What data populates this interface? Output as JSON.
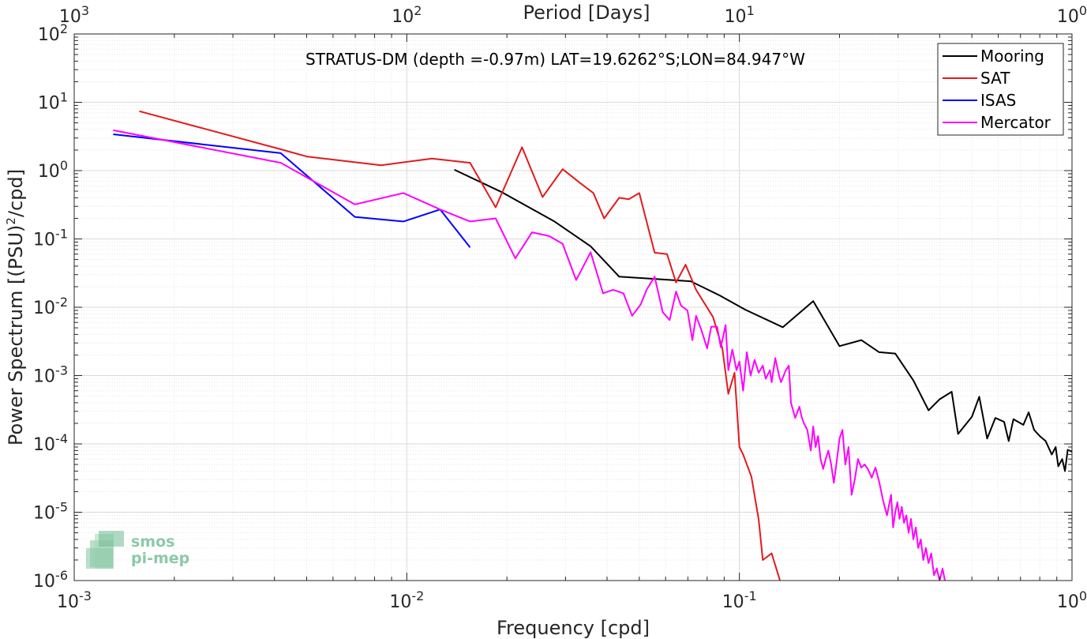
{
  "chart_data": {
    "type": "line",
    "title": "STRATUS-DM (depth =-0.97m) LAT=19.6262°S;LON=84.947°W",
    "xlabel": "Frequency [cpd]",
    "ylabel": "Power Spectrum [(PSU)",
    "ylabel_sup": "2",
    "ylabel_tail": "/cpd]",
    "top_xlabel": "Period [Days]",
    "xscale": "log",
    "yscale": "log",
    "xlim": [
      0.001,
      1
    ],
    "ylim": [
      1e-06,
      100
    ],
    "grid": true,
    "legend_position": "top-right",
    "x_ticks": [
      {
        "base": "10",
        "exp": "-3",
        "v": 0.001
      },
      {
        "base": "10",
        "exp": "-2",
        "v": 0.01
      },
      {
        "base": "10",
        "exp": "-1",
        "v": 0.1
      },
      {
        "base": "10",
        "exp": "0",
        "v": 1
      }
    ],
    "top_ticks": [
      {
        "base": "10",
        "exp": "3",
        "v": 0.001
      },
      {
        "base": "10",
        "exp": "2",
        "v": 0.01
      },
      {
        "base": "10",
        "exp": "1",
        "v": 0.1
      },
      {
        "base": "10",
        "exp": "0",
        "v": 1
      }
    ],
    "y_ticks": [
      {
        "base": "10",
        "exp": "2",
        "v": 100
      },
      {
        "base": "10",
        "exp": "1",
        "v": 10
      },
      {
        "base": "10",
        "exp": "0",
        "v": 1
      },
      {
        "base": "10",
        "exp": "-1",
        "v": 0.1
      },
      {
        "base": "10",
        "exp": "-2",
        "v": 0.01
      },
      {
        "base": "10",
        "exp": "-3",
        "v": 0.001
      },
      {
        "base": "10",
        "exp": "-4",
        "v": 0.0001
      },
      {
        "base": "10",
        "exp": "-5",
        "v": 1e-05
      },
      {
        "base": "10",
        "exp": "-6",
        "v": 1e-06
      }
    ],
    "series": [
      {
        "name": "Mooring",
        "color": "#000000",
        "points": [
          [
            0.0139,
            1.03
          ],
          [
            0.0192,
            0.49
          ],
          [
            0.0278,
            0.18
          ],
          [
            0.0357,
            0.078
          ],
          [
            0.0435,
            0.028
          ],
          [
            0.0556,
            0.026
          ],
          [
            0.0714,
            0.024
          ],
          [
            0.087,
            0.015
          ],
          [
            0.1042,
            0.0092
          ],
          [
            0.1351,
            0.0051
          ],
          [
            0.1667,
            0.0123
          ],
          [
            0.2,
            0.0027
          ],
          [
            0.2326,
            0.0033
          ],
          [
            0.2632,
            0.0022
          ],
          [
            0.2941,
            0.0021
          ],
          [
            0.3333,
            0.00085
          ],
          [
            0.3704,
            0.00031
          ],
          [
            0.4,
            0.00045
          ],
          [
            0.4348,
            0.00058
          ],
          [
            0.4545,
            0.00014
          ],
          [
            0.5,
            0.00025
          ],
          [
            0.5263,
            0.00049
          ],
          [
            0.5556,
            0.00012
          ],
          [
            0.5882,
            0.00024
          ],
          [
            0.625,
            0.00021
          ],
          [
            0.6452,
            0.00011
          ],
          [
            0.6667,
            0.00023
          ],
          [
            0.7143,
            0.00019
          ],
          [
            0.7407,
            0.00029
          ],
          [
            0.7692,
            0.00016
          ],
          [
            0.8,
            0.00013
          ],
          [
            0.8333,
            0.00011
          ],
          [
            0.8696,
            7e-05
          ],
          [
            0.8929,
            9e-05
          ],
          [
            0.9091,
            4.7e-05
          ],
          [
            0.9346,
            6e-05
          ],
          [
            0.9524,
            4e-05
          ],
          [
            0.9709,
            8.2e-05
          ],
          [
            1.0,
            7.7e-05
          ]
        ]
      },
      {
        "name": "SAT",
        "color": "#e31a1c",
        "points": [
          [
            0.00157,
            7.4
          ],
          [
            0.00418,
            2.05
          ],
          [
            0.00502,
            1.6
          ],
          [
            0.00837,
            1.2
          ],
          [
            0.0119,
            1.5
          ],
          [
            0.0155,
            1.3
          ],
          [
            0.0185,
            0.29
          ],
          [
            0.0222,
            2.2
          ],
          [
            0.0256,
            0.41
          ],
          [
            0.0294,
            1.05
          ],
          [
            0.0333,
            0.65
          ],
          [
            0.0364,
            0.47
          ],
          [
            0.0392,
            0.2
          ],
          [
            0.0435,
            0.4
          ],
          [
            0.0465,
            0.38
          ],
          [
            0.05,
            0.47
          ],
          [
            0.0556,
            0.063
          ],
          [
            0.0606,
            0.06
          ],
          [
            0.0645,
            0.023
          ],
          [
            0.0689,
            0.042
          ],
          [
            0.0741,
            0.018
          ],
          [
            0.0833,
            0.0072
          ],
          [
            0.0889,
            0.0025
          ],
          [
            0.0926,
            0.00054
          ],
          [
            0.0967,
            0.0011
          ],
          [
            0.1,
            9e-05
          ],
          [
            0.1026,
            7e-05
          ],
          [
            0.1087,
            3.3e-05
          ],
          [
            0.1143,
            7.8e-06
          ],
          [
            0.1176,
            2e-06
          ],
          [
            0.125,
            2.5e-06
          ],
          [
            0.1333,
            9e-07
          ]
        ]
      },
      {
        "name": "ISAS",
        "color": "#0000ff",
        "points": [
          [
            0.00131,
            3.4
          ],
          [
            0.00418,
            1.8
          ],
          [
            0.00698,
            0.21
          ],
          [
            0.00977,
            0.18
          ],
          [
            0.0126,
            0.27
          ],
          [
            0.0155,
            0.075
          ]
        ]
      },
      {
        "name": "Mercator",
        "color": "#ff00ff",
        "points": [
          [
            0.00131,
            3.9
          ],
          [
            0.00418,
            1.3
          ],
          [
            0.00698,
            0.32
          ],
          [
            0.00977,
            0.47
          ],
          [
            0.0126,
            0.27
          ],
          [
            0.0155,
            0.18
          ],
          [
            0.0185,
            0.2
          ],
          [
            0.0212,
            0.052
          ],
          [
            0.0238,
            0.125
          ],
          [
            0.0268,
            0.11
          ],
          [
            0.0294,
            0.085
          ],
          [
            0.0323,
            0.025
          ],
          [
            0.0357,
            0.064
          ],
          [
            0.0389,
            0.016
          ],
          [
            0.0417,
            0.018
          ],
          [
            0.0448,
            0.016
          ],
          [
            0.0476,
            0.0075
          ],
          [
            0.0505,
            0.011
          ],
          [
            0.0526,
            0.018
          ],
          [
            0.0556,
            0.028
          ],
          [
            0.0588,
            0.0085
          ],
          [
            0.0617,
            0.0065
          ],
          [
            0.0645,
            0.017
          ],
          [
            0.0667,
            0.0106
          ],
          [
            0.0698,
            0.009
          ],
          [
            0.0722,
            0.0033
          ],
          [
            0.0741,
            0.0075
          ],
          [
            0.0769,
            0.0046
          ],
          [
            0.08,
            0.0025
          ],
          [
            0.0823,
            0.0052
          ],
          [
            0.0857,
            0.0052
          ],
          [
            0.0879,
            0.0026
          ],
          [
            0.0909,
            0.0055
          ],
          [
            0.0926,
            0.0012
          ],
          [
            0.0952,
            0.0024
          ],
          [
            0.098,
            0.0012
          ],
          [
            0.1,
            0.0016
          ],
          [
            0.1026,
            0.0006
          ],
          [
            0.1053,
            0.0022
          ],
          [
            0.1081,
            0.001
          ],
          [
            0.1111,
            0.0017
          ],
          [
            0.1143,
            0.0011
          ],
          [
            0.1176,
            0.0014
          ],
          [
            0.12,
            0.0009
          ],
          [
            0.1235,
            0.0012
          ],
          [
            0.125,
            0.0008
          ],
          [
            0.1282,
            0.0018
          ],
          [
            0.1316,
            0.001
          ],
          [
            0.1333,
            0.0008
          ],
          [
            0.1379,
            0.0012
          ],
          [
            0.1408,
            0.0014
          ],
          [
            0.1429,
            0.0004
          ],
          [
            0.1471,
            0.00024
          ],
          [
            0.1515,
            0.00035
          ],
          [
            0.1538,
            0.00025
          ],
          [
            0.1563,
            0.0002
          ],
          [
            0.16,
            0.00016
          ],
          [
            0.1639,
            8e-05
          ],
          [
            0.1667,
            0.00018
          ],
          [
            0.1695,
            9e-05
          ],
          [
            0.1724,
            0.00013
          ],
          [
            0.1754,
            6e-05
          ],
          [
            0.1786,
            4.3e-05
          ],
          [
            0.1818,
            6e-05
          ],
          [
            0.1852,
            8e-05
          ],
          [
            0.1887,
            5e-05
          ],
          [
            0.1923,
            2.7e-05
          ],
          [
            0.1961,
            5.5e-05
          ],
          [
            0.2,
            0.00012
          ],
          [
            0.2041,
            0.00016
          ],
          [
            0.2083,
            5e-05
          ],
          [
            0.2128,
            9e-05
          ],
          [
            0.2174,
            1.8e-05
          ],
          [
            0.2222,
            3e-05
          ],
          [
            0.2273,
            6e-05
          ],
          [
            0.2326,
            4.5e-05
          ],
          [
            0.2381,
            5e-05
          ],
          [
            0.2439,
            4.2e-05
          ],
          [
            0.25,
            3.2e-05
          ],
          [
            0.2564,
            4.5e-05
          ],
          [
            0.2632,
            2.8e-05
          ],
          [
            0.2703,
            1.5e-05
          ],
          [
            0.2778,
            9e-06
          ],
          [
            0.2857,
            1.8e-05
          ],
          [
            0.2899,
            6e-06
          ],
          [
            0.2941,
            1e-05
          ],
          [
            0.2985,
            1.4e-05
          ],
          [
            0.303,
            8e-06
          ],
          [
            0.3077,
            1.2e-05
          ],
          [
            0.3125,
            7e-06
          ],
          [
            0.3175,
            9e-06
          ],
          [
            0.3226,
            5e-06
          ],
          [
            0.3279,
            8e-06
          ],
          [
            0.3333,
            4e-06
          ],
          [
            0.339,
            6e-06
          ],
          [
            0.3448,
            3e-06
          ],
          [
            0.3509,
            4e-06
          ],
          [
            0.3571,
            2e-06
          ],
          [
            0.3636,
            3e-06
          ],
          [
            0.3704,
            1.8e-06
          ],
          [
            0.3774,
            2.5e-06
          ],
          [
            0.3846,
            1.2e-06
          ],
          [
            0.3922,
            1.5e-06
          ],
          [
            0.4,
            1e-06
          ],
          [
            0.4082,
            1.5e-06
          ],
          [
            0.4167,
            9e-07
          ]
        ]
      }
    ]
  },
  "logo": {
    "line1": "smos",
    "line2": "pi-mep"
  }
}
